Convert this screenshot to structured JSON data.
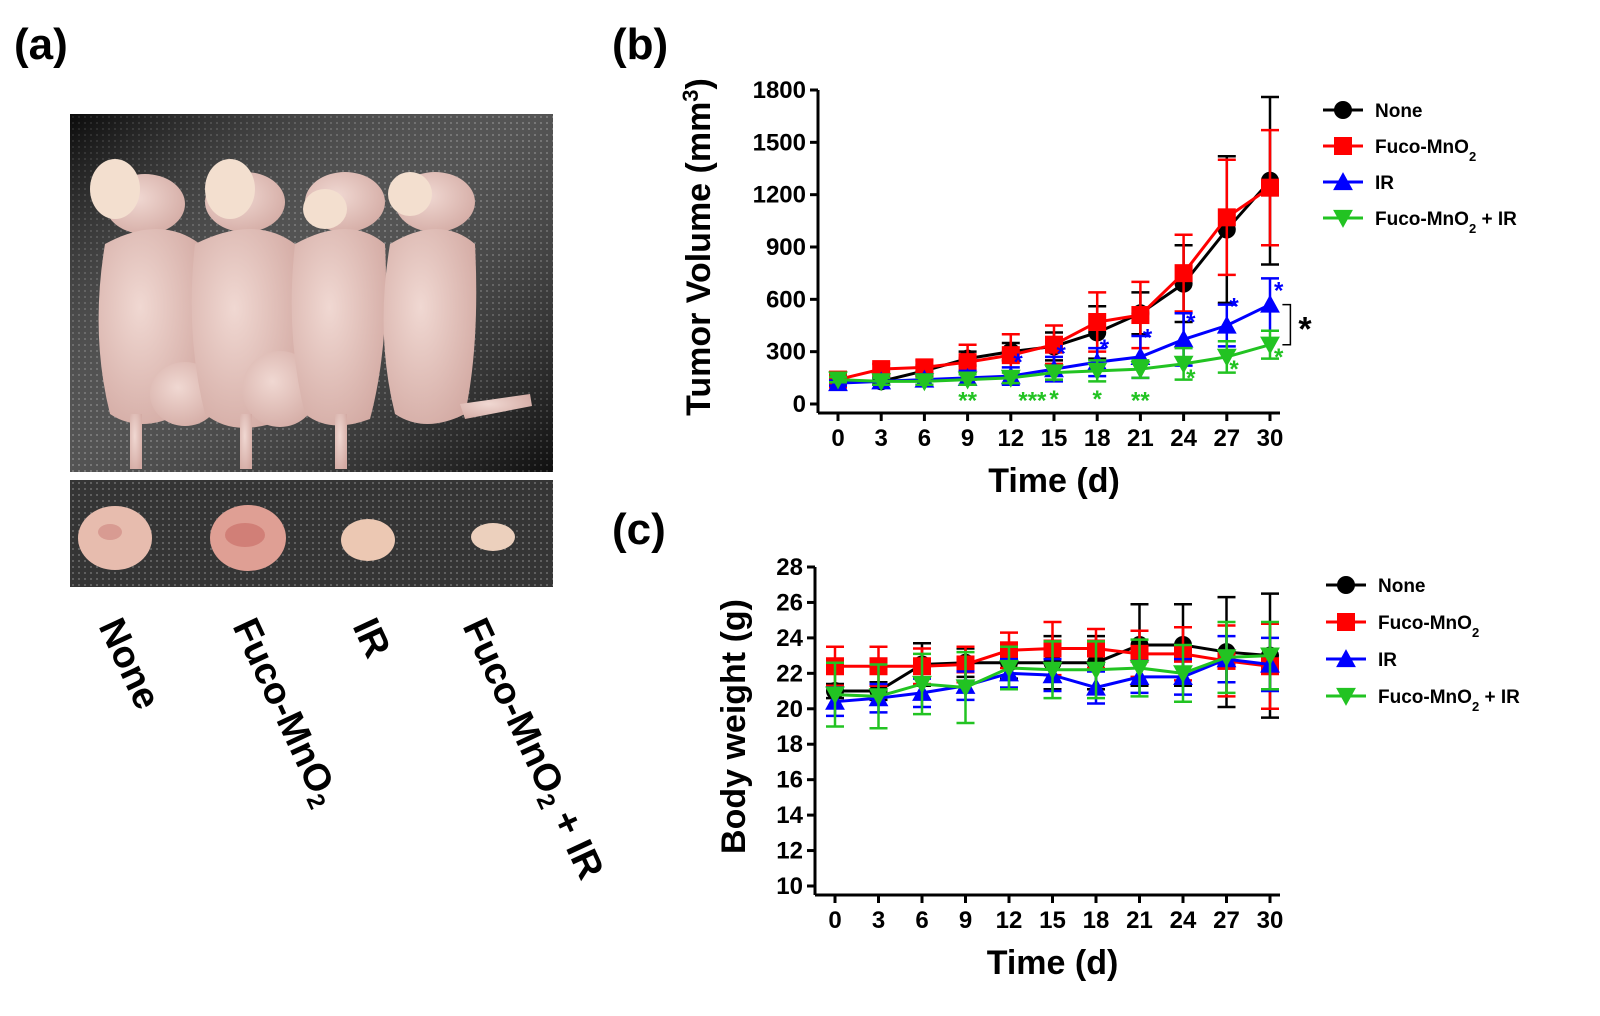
{
  "panels": {
    "a": {
      "label": "(a)"
    },
    "b": {
      "label": "(b)"
    },
    "c": {
      "label": "(c)"
    }
  },
  "photo_groups": [
    {
      "name": "None",
      "sub": "",
      "suffix": ""
    },
    {
      "name": "Fuco-MnO",
      "sub": "2",
      "suffix": ""
    },
    {
      "name": "IR",
      "sub": "",
      "suffix": ""
    },
    {
      "name": "Fuco-MnO",
      "sub": "2",
      "suffix": "+ IR"
    }
  ],
  "colors": {
    "none": "#000000",
    "fuco": "#ff0000",
    "ir": "#0000ff",
    "combo": "#22c322"
  },
  "chart_data": [
    {
      "type": "line",
      "id": "tumor-volume",
      "xlabel": "Time (d)",
      "ylabel": "Tumor Volume (mm3)",
      "ylabel_main": "Tumor Volume (mm",
      "ylabel_sup": "3",
      "ylabel_end": ")",
      "ylim": [
        0,
        1800
      ],
      "yticks": [
        0,
        300,
        600,
        900,
        1200,
        1500,
        1800
      ],
      "x": [
        0,
        3,
        6,
        9,
        12,
        15,
        18,
        21,
        24,
        27,
        30
      ],
      "legend_position": "right",
      "series": [
        {
          "key": "none",
          "name": "None",
          "sub": "",
          "suffix": "",
          "marker": "circle",
          "values": [
            130,
            130,
            190,
            260,
            300,
            330,
            410,
            520,
            690,
            1000,
            1280
          ],
          "errors": [
            20,
            20,
            30,
            40,
            50,
            80,
            150,
            120,
            220,
            420,
            480
          ]
        },
        {
          "key": "fuco",
          "name": "Fuco-MnO",
          "sub": "2",
          "suffix": "",
          "marker": "square",
          "values": [
            140,
            200,
            210,
            240,
            280,
            340,
            470,
            510,
            750,
            1070,
            1240
          ],
          "errors": [
            20,
            30,
            40,
            100,
            120,
            110,
            170,
            190,
            220,
            330,
            330
          ]
        },
        {
          "key": "ir",
          "name": "IR",
          "sub": "",
          "suffix": "",
          "marker": "triangle-up",
          "values": [
            120,
            130,
            140,
            150,
            160,
            200,
            240,
            270,
            370,
            450,
            570
          ],
          "errors": [
            15,
            20,
            30,
            40,
            50,
            70,
            80,
            120,
            150,
            120,
            150
          ]
        },
        {
          "key": "combo",
          "name": "Fuco-MnO",
          "sub": "2",
          "suffix": " + IR",
          "marker": "triangle-down",
          "values": [
            140,
            130,
            130,
            140,
            150,
            180,
            190,
            200,
            230,
            270,
            340
          ],
          "errors": [
            15,
            20,
            20,
            30,
            30,
            40,
            60,
            50,
            90,
            90,
            80
          ]
        }
      ],
      "annotations": [
        {
          "text": "*",
          "x": 12.5,
          "y": 240,
          "color": "ir"
        },
        {
          "text": "*",
          "x": 15.5,
          "y": 290,
          "color": "ir"
        },
        {
          "text": "*",
          "x": 18.5,
          "y": 320,
          "color": "ir"
        },
        {
          "text": "*",
          "x": 21.5,
          "y": 380,
          "color": "ir"
        },
        {
          "text": "*",
          "x": 24.5,
          "y": 470,
          "color": "ir"
        },
        {
          "text": "*",
          "x": 27.5,
          "y": 560,
          "color": "ir"
        },
        {
          "text": "*",
          "x": 30.6,
          "y": 650,
          "color": "ir"
        },
        {
          "text": "**",
          "x": 9,
          "y": 20,
          "color": "combo"
        },
        {
          "text": "***",
          "x": 13.5,
          "y": 20,
          "color": "combo"
        },
        {
          "text": "*",
          "x": 15,
          "y": 30,
          "color": "combo"
        },
        {
          "text": "*",
          "x": 18,
          "y": 30,
          "color": "combo"
        },
        {
          "text": "**",
          "x": 21,
          "y": 20,
          "color": "combo"
        },
        {
          "text": "*",
          "x": 24.5,
          "y": 150,
          "color": "combo"
        },
        {
          "text": "*",
          "x": 27.5,
          "y": 200,
          "color": "combo"
        },
        {
          "text": "*",
          "x": 30.6,
          "y": 270,
          "color": "combo"
        }
      ],
      "bracket": {
        "text": "*",
        "from": 570,
        "to": 340,
        "x": 31
      }
    },
    {
      "type": "line",
      "id": "body-weight",
      "xlabel": "Time (d)",
      "ylabel": "Body weight (g)",
      "ylim": [
        10,
        28
      ],
      "yticks": [
        10,
        12,
        14,
        16,
        18,
        20,
        22,
        24,
        26,
        28
      ],
      "x": [
        0,
        3,
        6,
        9,
        12,
        15,
        18,
        21,
        24,
        27,
        30
      ],
      "legend_position": "right",
      "series": [
        {
          "key": "none",
          "name": "None",
          "sub": "",
          "suffix": "",
          "marker": "circle",
          "values": [
            21.0,
            21.0,
            22.5,
            22.6,
            22.6,
            22.6,
            22.6,
            23.6,
            23.6,
            23.2,
            23.0
          ],
          "errors": [
            0.4,
            0.5,
            1.2,
            0.8,
            0.9,
            1.5,
            1.5,
            2.3,
            2.3,
            3.1,
            3.5
          ]
        },
        {
          "key": "fuco",
          "name": "Fuco-MnO",
          "sub": "2",
          "suffix": "",
          "marker": "square",
          "values": [
            22.4,
            22.4,
            22.4,
            22.5,
            23.3,
            23.4,
            23.4,
            23.1,
            23.1,
            22.7,
            22.4
          ],
          "errors": [
            1.1,
            1.1,
            1.0,
            1.0,
            1.0,
            1.5,
            1.1,
            1.3,
            1.5,
            2.0,
            2.4
          ]
        },
        {
          "key": "ir",
          "name": "IR",
          "sub": "",
          "suffix": "",
          "marker": "triangle-up",
          "values": [
            20.4,
            20.6,
            20.9,
            21.3,
            22.0,
            21.9,
            21.2,
            21.8,
            21.8,
            22.8,
            22.5
          ],
          "errors": [
            0.8,
            0.8,
            0.8,
            0.8,
            0.8,
            0.9,
            0.9,
            0.9,
            1.0,
            1.3,
            1.5
          ]
        },
        {
          "key": "combo",
          "name": "Fuco-MnO",
          "sub": "2",
          "suffix": " + IR",
          "marker": "triangle-down",
          "values": [
            20.8,
            20.7,
            21.4,
            21.2,
            22.3,
            22.2,
            22.2,
            22.3,
            22.0,
            22.9,
            23.0
          ],
          "errors": [
            1.8,
            1.8,
            1.7,
            2.0,
            1.2,
            1.6,
            1.6,
            1.6,
            1.6,
            2.0,
            1.9
          ]
        }
      ]
    }
  ]
}
